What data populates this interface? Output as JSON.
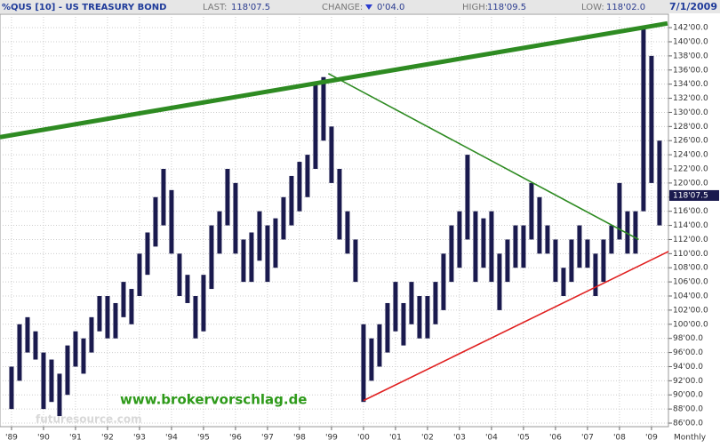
{
  "chart_data": {
    "type": "range-bar",
    "title": "%QUS [10] - US TREASURY BOND",
    "header": {
      "last_label": "LAST:",
      "last": "118'07.5",
      "change_label": "CHANGE:",
      "change": "0'04.0",
      "high_label": "HIGH:",
      "high": "118'09.5",
      "low_label": "LOW:",
      "low": "118'02.0",
      "date": "7/1/2009"
    },
    "watermark": "www.brokervorschlag.de",
    "source": "futuresource.com",
    "period": "Monthly",
    "color": "#1a1a4e",
    "x": [
      1989,
      1989.25,
      1989.5,
      1989.75,
      1990,
      1990.25,
      1990.5,
      1990.75,
      1991,
      1991.25,
      1991.5,
      1991.75,
      1992,
      1992.25,
      1992.5,
      1992.75,
      1993,
      1993.25,
      1993.5,
      1993.75,
      1994,
      1994.25,
      1994.5,
      1994.75,
      1995,
      1995.25,
      1995.5,
      1995.75,
      1996,
      1996.25,
      1996.5,
      1996.75,
      1997,
      1997.25,
      1997.5,
      1997.75,
      1998,
      1998.25,
      1998.5,
      1998.75,
      1999,
      1999.25,
      1999.5,
      1999.75,
      2000,
      2000.25,
      2000.5,
      2000.75,
      2001,
      2001.25,
      2001.5,
      2001.75,
      2002,
      2002.25,
      2002.5,
      2002.75,
      2003,
      2003.25,
      2003.5,
      2003.75,
      2004,
      2004.25,
      2004.5,
      2004.75,
      2005,
      2005.25,
      2005.5,
      2005.75,
      2006,
      2006.25,
      2006.5,
      2006.75,
      2007,
      2007.25,
      2007.5,
      2007.75,
      2008,
      2008.25,
      2008.5,
      2008.75,
      2009,
      2009.25
    ],
    "low": [
      88,
      92,
      96,
      95,
      88,
      89,
      87,
      90,
      94,
      93,
      96,
      99,
      98,
      98,
      101,
      100,
      104,
      107,
      111,
      114,
      110,
      104,
      103,
      98,
      99,
      105,
      110,
      114,
      110,
      106,
      106,
      109,
      106,
      108,
      112,
      114,
      116,
      118,
      122,
      126,
      120,
      112,
      110,
      106,
      89,
      92,
      94,
      96,
      99,
      97,
      100,
      98,
      98,
      100,
      102,
      106,
      108,
      112,
      106,
      108,
      106,
      102,
      106,
      108,
      108,
      112,
      110,
      110,
      106,
      104,
      106,
      108,
      108,
      104,
      106,
      110,
      112,
      110,
      110,
      116,
      120,
      114
    ],
    "high": [
      94,
      100,
      101,
      99,
      96,
      95,
      93,
      97,
      99,
      98,
      101,
      104,
      104,
      103,
      106,
      105,
      110,
      113,
      118,
      122,
      119,
      110,
      107,
      104,
      107,
      114,
      116,
      122,
      120,
      112,
      113,
      116,
      114,
      115,
      118,
      121,
      123,
      124,
      134,
      135,
      128,
      122,
      116,
      112,
      100,
      98,
      100,
      103,
      106,
      103,
      106,
      104,
      104,
      106,
      110,
      114,
      116,
      124,
      116,
      115,
      116,
      110,
      112,
      114,
      114,
      120,
      118,
      114,
      112,
      108,
      112,
      114,
      112,
      110,
      112,
      114,
      120,
      116,
      116,
      142,
      138,
      126
    ],
    "last_marker": {
      "value": 118.234,
      "label": "118'07.5"
    },
    "trendlines": [
      {
        "color": "#2e8b22",
        "x": [
          1988.64,
          2009.5
        ],
        "y": [
          126.5,
          142.6
        ]
      },
      {
        "color": "#2e8b22",
        "x": [
          1998.9,
          2008.6
        ],
        "y": [
          135.5,
          112
        ]
      },
      {
        "color": "#e02020",
        "x": [
          2000,
          2009.53
        ],
        "y": [
          89.2,
          110.3
        ]
      }
    ],
    "xlim": [
      1988.64,
      2009.53
    ],
    "ylim": [
      85.5,
      143.9
    ],
    "xticks": [
      {
        "value": 1989,
        "label": "'89"
      },
      {
        "value": 1990,
        "label": "'90"
      },
      {
        "value": 1991,
        "label": "'91"
      },
      {
        "value": 1992,
        "label": "'92"
      },
      {
        "value": 1993,
        "label": "'93"
      },
      {
        "value": 1994,
        "label": "'94"
      },
      {
        "value": 1995,
        "label": "'95"
      },
      {
        "value": 1996,
        "label": "'96"
      },
      {
        "value": 1997,
        "label": "'97"
      },
      {
        "value": 1998,
        "label": "'98"
      },
      {
        "value": 1999,
        "label": "'99"
      },
      {
        "value": 2000,
        "label": "'00"
      },
      {
        "value": 2001,
        "label": "'01"
      },
      {
        "value": 2002,
        "label": "'02"
      },
      {
        "value": 2003,
        "label": "'03"
      },
      {
        "value": 2004,
        "label": "'04"
      },
      {
        "value": 2005,
        "label": "'05"
      },
      {
        "value": 2006,
        "label": "'06"
      },
      {
        "value": 2007,
        "label": "'07"
      },
      {
        "value": 2008,
        "label": "'08"
      },
      {
        "value": 2009,
        "label": "'09"
      }
    ],
    "yticks": [
      {
        "value": 86,
        "label": "86'00.0"
      },
      {
        "value": 88,
        "label": "88'00.0"
      },
      {
        "value": 90,
        "label": "90'00.0"
      },
      {
        "value": 92,
        "label": "92'00.0"
      },
      {
        "value": 94,
        "label": "94'00.0"
      },
      {
        "value": 96,
        "label": "96'00.0"
      },
      {
        "value": 98,
        "label": "98'00.0"
      },
      {
        "value": 100,
        "label": "100'00.0"
      },
      {
        "value": 102,
        "label": "102'00.0"
      },
      {
        "value": 104,
        "label": "104'00.0"
      },
      {
        "value": 106,
        "label": "106'00.0"
      },
      {
        "value": 108,
        "label": "108'00.0"
      },
      {
        "value": 110,
        "label": "110'00.0"
      },
      {
        "value": 112,
        "label": "112'00.0"
      },
      {
        "value": 114,
        "label": "114'00.0"
      },
      {
        "value": 116,
        "label": "116'00.0"
      },
      {
        "value": 118,
        "label": "118'00.0"
      },
      {
        "value": 120,
        "label": "120'00.0"
      },
      {
        "value": 122,
        "label": "122'00.0"
      },
      {
        "value": 124,
        "label": "124'00.0"
      },
      {
        "value": 126,
        "label": "126'00.0"
      },
      {
        "value": 128,
        "label": "128'00.0"
      },
      {
        "value": 130,
        "label": "130'00.0"
      },
      {
        "value": 132,
        "label": "132'00.0"
      },
      {
        "value": 134,
        "label": "134'00.0"
      },
      {
        "value": 136,
        "label": "136'00.0"
      },
      {
        "value": 138,
        "label": "138'00.0"
      },
      {
        "value": 140,
        "label": "140'00.0"
      },
      {
        "value": 142,
        "label": "142'00.0"
      }
    ],
    "grid": true
  }
}
